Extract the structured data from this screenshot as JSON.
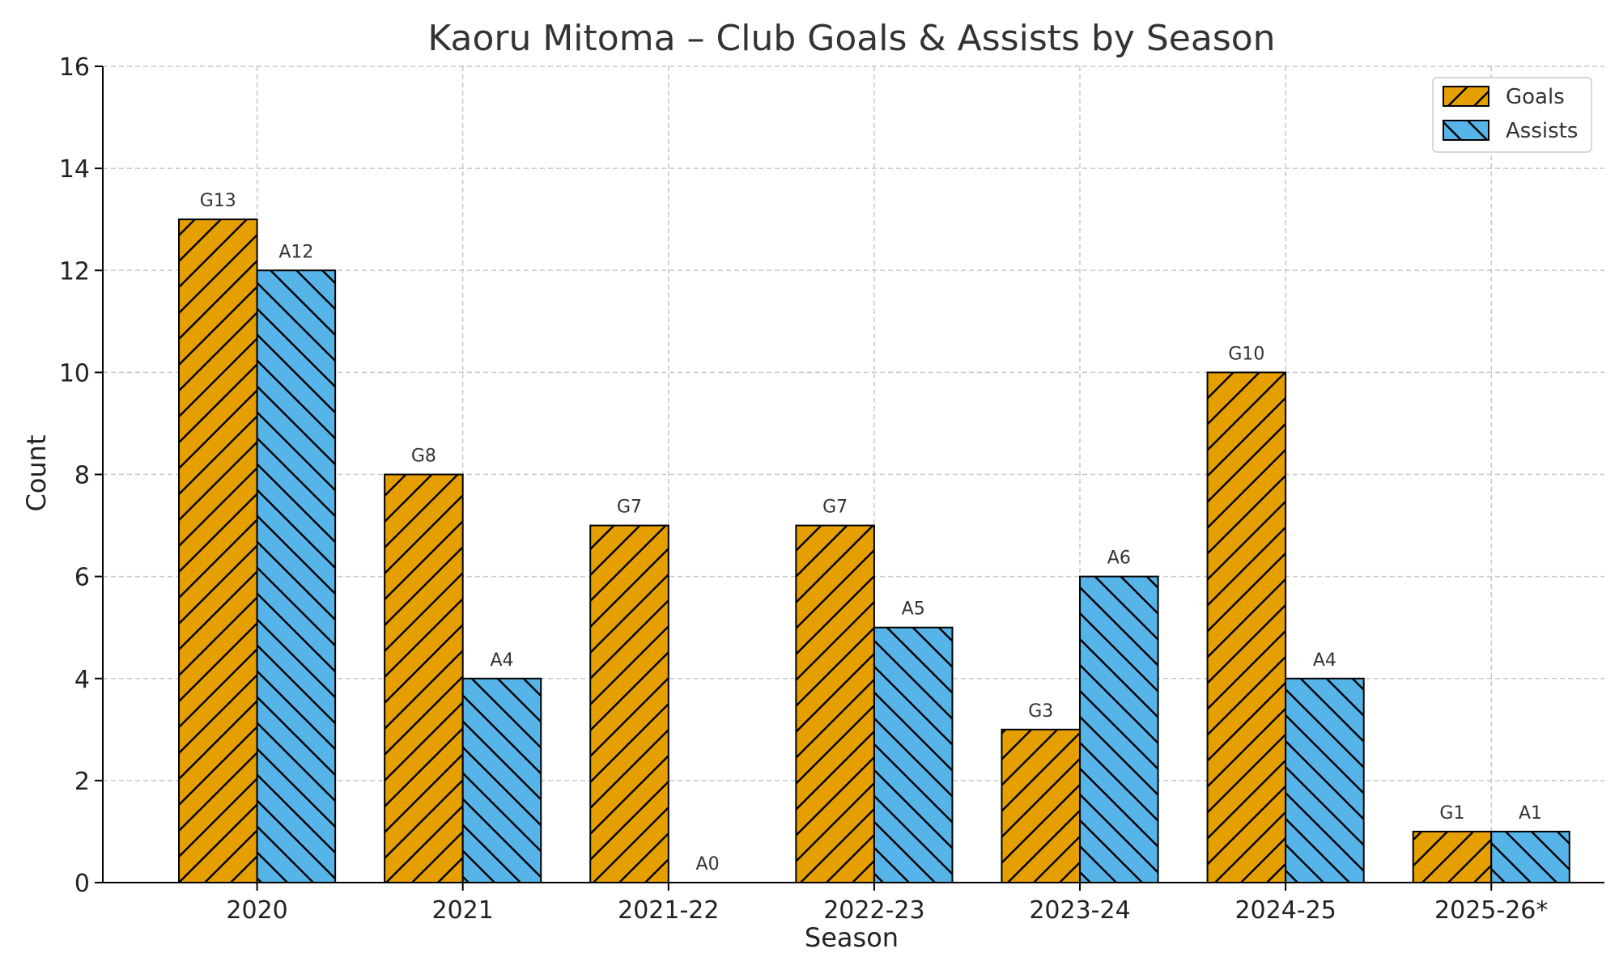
{
  "chart_data": {
    "type": "bar",
    "title": "Kaoru Mitoma – Club Goals & Assists by Season",
    "xlabel": "Season",
    "ylabel": "Count",
    "ylim": [
      0,
      16
    ],
    "yticks": [
      0,
      2,
      4,
      6,
      8,
      10,
      12,
      14,
      16
    ],
    "grid": true,
    "legend_position": "top-right",
    "categories": [
      "2020",
      "2021",
      "2021-22",
      "2022-23",
      "2023-24",
      "2024-25",
      "2025-26*"
    ],
    "series": [
      {
        "name": "Goals",
        "values": [
          13,
          8,
          7,
          7,
          3,
          10,
          1
        ],
        "labels": [
          "G13",
          "G8",
          "G7",
          "G7",
          "G3",
          "G10",
          "G1"
        ],
        "color": "#E69F00",
        "hatch": "forward-diagonal"
      },
      {
        "name": "Assists",
        "values": [
          12,
          4,
          0,
          5,
          6,
          4,
          1
        ],
        "labels": [
          "A12",
          "A4",
          "A0",
          "A5",
          "A6",
          "A4",
          "A1"
        ],
        "color": "#56B4E9",
        "hatch": "back-diagonal"
      }
    ]
  }
}
